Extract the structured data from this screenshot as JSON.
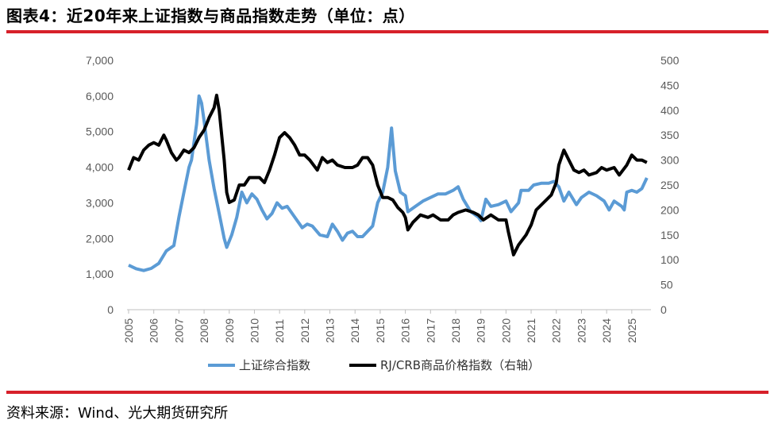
{
  "title": "图表4：近20年来上证指数与商品指数走势（单位：点）",
  "source": "资料来源：Wind、光大期货研究所",
  "colors": {
    "accent": "#d7202a",
    "series1": "#5b9bd5",
    "series2": "#000000"
  },
  "chart_data": {
    "type": "line",
    "title": "近20年来上证指数与商品指数走势（单位：点）",
    "x_labels": [
      "2005",
      "2006",
      "2007",
      "2008",
      "2009",
      "2010",
      "2011",
      "2012",
      "2013",
      "2014",
      "2015",
      "2016",
      "2017",
      "2018",
      "2019",
      "2020",
      "2021",
      "2022",
      "2023",
      "2024",
      "2025"
    ],
    "y_left": {
      "min": 0,
      "max": 7000,
      "ticks": [
        "0",
        "1,000",
        "2,000",
        "3,000",
        "4,000",
        "5,000",
        "6,000",
        "7,000"
      ]
    },
    "y_right": {
      "min": 0,
      "max": 500,
      "ticks": [
        "0",
        "50",
        "100",
        "150",
        "200",
        "250",
        "300",
        "350",
        "400",
        "450",
        "500"
      ]
    },
    "series": [
      {
        "name": "上证综合指数",
        "axis": "left",
        "points": [
          [
            2005.0,
            1250
          ],
          [
            2005.3,
            1150
          ],
          [
            2005.6,
            1100
          ],
          [
            2005.9,
            1160
          ],
          [
            2006.2,
            1300
          ],
          [
            2006.5,
            1650
          ],
          [
            2006.8,
            1800
          ],
          [
            2007.0,
            2600
          ],
          [
            2007.2,
            3300
          ],
          [
            2007.4,
            4000
          ],
          [
            2007.5,
            4200
          ],
          [
            2007.7,
            5200
          ],
          [
            2007.8,
            6000
          ],
          [
            2007.9,
            5800
          ],
          [
            2008.0,
            5300
          ],
          [
            2008.2,
            4200
          ],
          [
            2008.4,
            3400
          ],
          [
            2008.6,
            2700
          ],
          [
            2008.8,
            2000
          ],
          [
            2008.9,
            1750
          ],
          [
            2009.1,
            2100
          ],
          [
            2009.3,
            2600
          ],
          [
            2009.5,
            3300
          ],
          [
            2009.7,
            3000
          ],
          [
            2009.9,
            3250
          ],
          [
            2010.1,
            3100
          ],
          [
            2010.3,
            2800
          ],
          [
            2010.5,
            2550
          ],
          [
            2010.7,
            2700
          ],
          [
            2010.9,
            3000
          ],
          [
            2011.1,
            2850
          ],
          [
            2011.3,
            2900
          ],
          [
            2011.6,
            2600
          ],
          [
            2011.9,
            2300
          ],
          [
            2012.1,
            2400
          ],
          [
            2012.3,
            2350
          ],
          [
            2012.6,
            2100
          ],
          [
            2012.9,
            2050
          ],
          [
            2013.1,
            2400
          ],
          [
            2013.3,
            2200
          ],
          [
            2013.5,
            1950
          ],
          [
            2013.7,
            2150
          ],
          [
            2013.9,
            2200
          ],
          [
            2014.1,
            2050
          ],
          [
            2014.3,
            2050
          ],
          [
            2014.5,
            2200
          ],
          [
            2014.7,
            2350
          ],
          [
            2014.9,
            3000
          ],
          [
            2015.1,
            3300
          ],
          [
            2015.3,
            4000
          ],
          [
            2015.45,
            5100
          ],
          [
            2015.6,
            3900
          ],
          [
            2015.8,
            3300
          ],
          [
            2016.0,
            3200
          ],
          [
            2016.1,
            2750
          ],
          [
            2016.4,
            2900
          ],
          [
            2016.7,
            3050
          ],
          [
            2017.0,
            3150
          ],
          [
            2017.3,
            3250
          ],
          [
            2017.6,
            3250
          ],
          [
            2017.9,
            3350
          ],
          [
            2018.1,
            3450
          ],
          [
            2018.3,
            3100
          ],
          [
            2018.6,
            2750
          ],
          [
            2018.9,
            2600
          ],
          [
            2019.0,
            2500
          ],
          [
            2019.2,
            3100
          ],
          [
            2019.4,
            2900
          ],
          [
            2019.7,
            2950
          ],
          [
            2020.0,
            3050
          ],
          [
            2020.2,
            2750
          ],
          [
            2020.5,
            3000
          ],
          [
            2020.6,
            3350
          ],
          [
            2020.9,
            3350
          ],
          [
            2021.1,
            3500
          ],
          [
            2021.4,
            3550
          ],
          [
            2021.7,
            3550
          ],
          [
            2021.9,
            3600
          ],
          [
            2022.1,
            3450
          ],
          [
            2022.3,
            3050
          ],
          [
            2022.5,
            3300
          ],
          [
            2022.8,
            2950
          ],
          [
            2023.0,
            3150
          ],
          [
            2023.3,
            3300
          ],
          [
            2023.6,
            3200
          ],
          [
            2023.9,
            3050
          ],
          [
            2024.1,
            2800
          ],
          [
            2024.3,
            3050
          ],
          [
            2024.6,
            2900
          ],
          [
            2024.7,
            2800
          ],
          [
            2024.8,
            3300
          ],
          [
            2025.0,
            3350
          ],
          [
            2025.2,
            3300
          ],
          [
            2025.4,
            3400
          ],
          [
            2025.6,
            3700
          ]
        ]
      },
      {
        "name": "RJ/CRB商品价格指数（右轴）",
        "axis": "right",
        "points": [
          [
            2005.0,
            280
          ],
          [
            2005.2,
            305
          ],
          [
            2005.4,
            300
          ],
          [
            2005.6,
            320
          ],
          [
            2005.8,
            330
          ],
          [
            2006.0,
            335
          ],
          [
            2006.2,
            330
          ],
          [
            2006.4,
            350
          ],
          [
            2006.5,
            340
          ],
          [
            2006.7,
            315
          ],
          [
            2006.9,
            300
          ],
          [
            2007.0,
            305
          ],
          [
            2007.2,
            320
          ],
          [
            2007.4,
            315
          ],
          [
            2007.6,
            325
          ],
          [
            2007.8,
            345
          ],
          [
            2008.0,
            360
          ],
          [
            2008.2,
            385
          ],
          [
            2008.4,
            405
          ],
          [
            2008.5,
            430
          ],
          [
            2008.6,
            400
          ],
          [
            2008.8,
            300
          ],
          [
            2008.9,
            235
          ],
          [
            2009.0,
            215
          ],
          [
            2009.2,
            220
          ],
          [
            2009.4,
            250
          ],
          [
            2009.6,
            250
          ],
          [
            2009.8,
            265
          ],
          [
            2010.0,
            265
          ],
          [
            2010.2,
            265
          ],
          [
            2010.4,
            255
          ],
          [
            2010.6,
            280
          ],
          [
            2010.8,
            310
          ],
          [
            2011.0,
            345
          ],
          [
            2011.2,
            355
          ],
          [
            2011.4,
            345
          ],
          [
            2011.6,
            330
          ],
          [
            2011.8,
            310
          ],
          [
            2012.0,
            310
          ],
          [
            2012.2,
            300
          ],
          [
            2012.5,
            280
          ],
          [
            2012.7,
            305
          ],
          [
            2012.9,
            295
          ],
          [
            2013.1,
            300
          ],
          [
            2013.3,
            290
          ],
          [
            2013.6,
            285
          ],
          [
            2013.9,
            285
          ],
          [
            2014.1,
            290
          ],
          [
            2014.3,
            305
          ],
          [
            2014.5,
            305
          ],
          [
            2014.7,
            290
          ],
          [
            2014.9,
            250
          ],
          [
            2015.1,
            225
          ],
          [
            2015.3,
            225
          ],
          [
            2015.5,
            220
          ],
          [
            2015.7,
            205
          ],
          [
            2015.9,
            195
          ],
          [
            2016.0,
            185
          ],
          [
            2016.1,
            160
          ],
          [
            2016.3,
            175
          ],
          [
            2016.6,
            190
          ],
          [
            2016.9,
            185
          ],
          [
            2017.1,
            190
          ],
          [
            2017.4,
            180
          ],
          [
            2017.7,
            180
          ],
          [
            2017.9,
            190
          ],
          [
            2018.1,
            195
          ],
          [
            2018.4,
            200
          ],
          [
            2018.7,
            195
          ],
          [
            2018.9,
            190
          ],
          [
            2019.1,
            180
          ],
          [
            2019.4,
            190
          ],
          [
            2019.7,
            180
          ],
          [
            2020.0,
            180
          ],
          [
            2020.1,
            155
          ],
          [
            2020.3,
            110
          ],
          [
            2020.5,
            130
          ],
          [
            2020.8,
            150
          ],
          [
            2021.0,
            170
          ],
          [
            2021.2,
            200
          ],
          [
            2021.5,
            215
          ],
          [
            2021.8,
            230
          ],
          [
            2022.0,
            255
          ],
          [
            2022.1,
            290
          ],
          [
            2022.3,
            320
          ],
          [
            2022.5,
            300
          ],
          [
            2022.7,
            280
          ],
          [
            2022.9,
            275
          ],
          [
            2023.1,
            280
          ],
          [
            2023.3,
            270
          ],
          [
            2023.6,
            275
          ],
          [
            2023.8,
            285
          ],
          [
            2024.0,
            280
          ],
          [
            2024.3,
            285
          ],
          [
            2024.5,
            270
          ],
          [
            2024.8,
            290
          ],
          [
            2025.0,
            310
          ],
          [
            2025.2,
            300
          ],
          [
            2025.4,
            300
          ],
          [
            2025.6,
            295
          ]
        ]
      }
    ]
  }
}
